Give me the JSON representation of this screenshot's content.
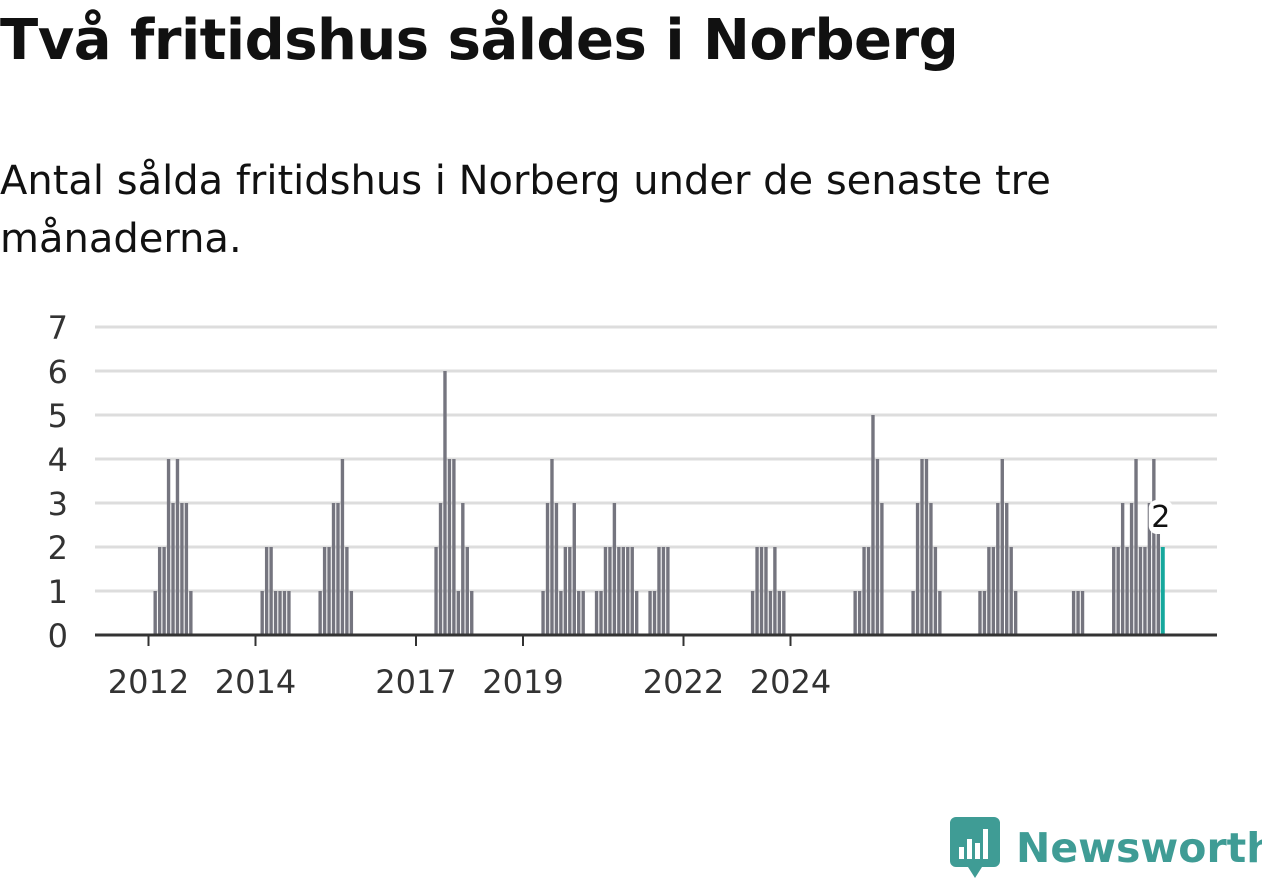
{
  "title": "Två fritidshus såldes i Norberg",
  "subtitle": "Antal sålda fritidshus i Norberg under de senaste tre månaderna.",
  "brand": "Newsworthy",
  "colors": {
    "bar": "#75757f",
    "highlight": "#16a89d",
    "grid": "#dddddd",
    "axis": "#333333",
    "brand": "#3f9c95"
  },
  "chart_data": {
    "type": "bar",
    "x_start": "2011-01",
    "x_end": "2025-04",
    "x_ticks": [
      "2012",
      "2014",
      "2017",
      "2019",
      "2022",
      "2024"
    ],
    "ylim": [
      0,
      7
    ],
    "y_ticks": [
      0,
      1,
      2,
      3,
      4,
      5,
      6,
      7
    ],
    "grid": true,
    "series": [
      {
        "values": [
          0,
          0,
          0,
          0,
          0,
          0,
          0,
          0,
          0,
          0,
          0,
          0,
          0,
          1,
          2,
          2,
          4,
          3,
          4,
          3,
          3,
          1,
          0,
          0,
          0,
          0,
          0,
          0,
          0,
          0,
          0,
          0,
          0,
          0,
          0,
          0,
          0,
          1,
          2,
          2,
          1,
          1,
          1,
          1,
          0,
          0,
          0,
          0,
          0,
          0,
          1,
          2,
          2,
          3,
          3,
          4,
          2,
          1,
          0,
          0,
          0,
          0,
          0,
          0,
          0,
          0,
          0,
          0,
          0,
          0,
          0,
          0,
          0,
          0,
          0,
          0,
          2,
          3,
          6,
          4,
          4,
          1,
          3,
          2,
          1,
          0,
          0,
          0,
          0,
          0,
          0,
          0,
          0,
          0,
          0,
          0,
          0,
          0,
          0,
          0,
          1,
          3,
          4,
          3,
          1,
          2,
          2,
          3,
          1,
          1,
          0,
          0,
          1,
          1,
          2,
          2,
          3,
          2,
          2,
          2,
          2,
          1,
          0,
          0,
          1,
          1,
          2,
          2,
          2,
          0,
          0,
          0,
          0,
          0,
          0,
          0,
          0,
          0,
          0,
          0,
          0,
          0,
          0,
          0,
          0,
          0,
          0,
          1,
          2,
          2,
          2,
          1,
          2,
          1,
          1,
          0,
          0,
          0,
          0,
          0,
          0,
          0,
          0,
          0,
          0,
          0,
          0,
          0,
          0,
          0,
          1,
          1,
          2,
          2,
          5,
          4,
          3,
          0,
          0,
          0,
          0,
          0,
          0,
          1,
          3,
          4,
          4,
          3,
          2,
          1,
          0,
          0,
          0,
          0,
          0,
          0,
          0,
          0,
          1,
          1,
          2,
          2,
          3,
          4,
          3,
          2,
          1,
          0,
          0,
          0,
          0,
          0,
          0,
          0,
          0,
          0,
          0,
          0,
          0,
          1,
          1,
          1,
          0,
          0,
          0,
          0,
          0,
          0,
          2,
          2,
          3,
          2,
          3,
          4,
          2,
          2,
          3,
          4,
          3,
          2
        ]
      }
    ],
    "annotations": [
      {
        "label": "2",
        "value": 2
      }
    ]
  }
}
